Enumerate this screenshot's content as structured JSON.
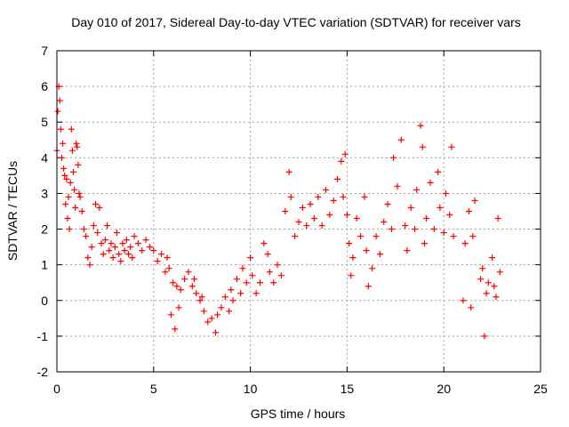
{
  "chart_data": {
    "type": "scatter",
    "title": "Day 010 of 2017, Sidereal Day-to-day VTEC variation (SDTVAR) for receiver vars",
    "xlabel": "GPS time / hours",
    "ylabel": "SDTVAR / TECUs",
    "xlim": [
      0,
      25
    ],
    "ylim": [
      -2,
      7
    ],
    "xticks": [
      "0",
      "5",
      "10",
      "15",
      "20",
      "25"
    ],
    "yticks": [
      "-2",
      "-1",
      "0",
      "1",
      "2",
      "3",
      "4",
      "5",
      "6",
      "7"
    ],
    "grid": true,
    "marker": "plus",
    "series": [
      {
        "name": "SDTVAR",
        "color": "#ff0000",
        "points": [
          [
            0.0,
            4.2
          ],
          [
            0.05,
            5.3
          ],
          [
            0.1,
            6.0
          ],
          [
            0.15,
            5.6
          ],
          [
            0.2,
            4.8
          ],
          [
            0.25,
            4.0
          ],
          [
            0.3,
            4.4
          ],
          [
            0.35,
            3.7
          ],
          [
            0.4,
            3.5
          ],
          [
            0.45,
            2.7
          ],
          [
            0.5,
            3.4
          ],
          [
            0.55,
            2.3
          ],
          [
            0.6,
            2.9
          ],
          [
            0.65,
            2.0
          ],
          [
            0.7,
            3.3
          ],
          [
            0.75,
            4.8
          ],
          [
            0.8,
            4.2
          ],
          [
            0.85,
            3.6
          ],
          [
            0.9,
            3.1
          ],
          [
            0.95,
            2.6
          ],
          [
            1.0,
            4.4
          ],
          [
            1.05,
            4.3
          ],
          [
            1.1,
            3.8
          ],
          [
            1.15,
            3.0
          ],
          [
            1.2,
            2.9
          ],
          [
            1.3,
            2.5
          ],
          [
            1.4,
            2.0
          ],
          [
            1.5,
            1.8
          ],
          [
            1.6,
            1.2
          ],
          [
            1.7,
            1.0
          ],
          [
            1.8,
            1.5
          ],
          [
            1.9,
            2.1
          ],
          [
            2.0,
            2.7
          ],
          [
            2.1,
            1.9
          ],
          [
            2.2,
            2.6
          ],
          [
            2.3,
            1.6
          ],
          [
            2.4,
            1.3
          ],
          [
            2.5,
            1.7
          ],
          [
            2.6,
            2.1
          ],
          [
            2.7,
            1.4
          ],
          [
            2.8,
            1.6
          ],
          [
            2.9,
            1.2
          ],
          [
            3.0,
            1.5
          ],
          [
            3.1,
            1.9
          ],
          [
            3.2,
            1.3
          ],
          [
            3.3,
            1.1
          ],
          [
            3.4,
            1.6
          ],
          [
            3.5,
            1.4
          ],
          [
            3.6,
            1.7
          ],
          [
            3.7,
            1.3
          ],
          [
            3.8,
            1.5
          ],
          [
            3.9,
            1.2
          ],
          [
            4.0,
            1.8
          ],
          [
            4.2,
            1.6
          ],
          [
            4.4,
            1.4
          ],
          [
            4.6,
            1.7
          ],
          [
            4.8,
            1.5
          ],
          [
            5.0,
            1.4
          ],
          [
            5.2,
            1.1
          ],
          [
            5.4,
            1.3
          ],
          [
            5.6,
            0.8
          ],
          [
            5.7,
            1.2
          ],
          [
            5.8,
            0.9
          ],
          [
            5.9,
            -0.4
          ],
          [
            6.0,
            0.5
          ],
          [
            6.1,
            -0.8
          ],
          [
            6.2,
            0.4
          ],
          [
            6.3,
            -0.2
          ],
          [
            6.4,
            0.3
          ],
          [
            6.6,
            0.6
          ],
          [
            6.8,
            0.8
          ],
          [
            7.0,
            0.4
          ],
          [
            7.1,
            0.6
          ],
          [
            7.2,
            0.2
          ],
          [
            7.4,
            0.0
          ],
          [
            7.5,
            0.1
          ],
          [
            7.6,
            -0.3
          ],
          [
            7.8,
            -0.6
          ],
          [
            8.0,
            -0.5
          ],
          [
            8.2,
            -0.9
          ],
          [
            8.3,
            -0.4
          ],
          [
            8.5,
            -0.2
          ],
          [
            8.7,
            0.1
          ],
          [
            8.9,
            -0.3
          ],
          [
            9.0,
            0.3
          ],
          [
            9.1,
            0.0
          ],
          [
            9.3,
            0.6
          ],
          [
            9.5,
            0.2
          ],
          [
            9.6,
            0.9
          ],
          [
            9.8,
            0.5
          ],
          [
            10.0,
            1.2
          ],
          [
            10.1,
            0.7
          ],
          [
            10.3,
            0.2
          ],
          [
            10.5,
            0.5
          ],
          [
            10.7,
            1.6
          ],
          [
            10.9,
            1.3
          ],
          [
            11.0,
            0.8
          ],
          [
            11.2,
            0.5
          ],
          [
            11.4,
            1.0
          ],
          [
            11.6,
            0.7
          ],
          [
            11.8,
            2.5
          ],
          [
            12.0,
            3.6
          ],
          [
            12.1,
            2.9
          ],
          [
            12.3,
            1.8
          ],
          [
            12.5,
            2.2
          ],
          [
            12.7,
            2.6
          ],
          [
            12.9,
            2.1
          ],
          [
            13.1,
            2.7
          ],
          [
            13.3,
            2.3
          ],
          [
            13.5,
            2.9
          ],
          [
            13.7,
            2.1
          ],
          [
            13.9,
            3.1
          ],
          [
            14.1,
            2.4
          ],
          [
            14.3,
            2.8
          ],
          [
            14.5,
            3.4
          ],
          [
            14.7,
            3.9
          ],
          [
            14.8,
            2.9
          ],
          [
            14.9,
            4.1
          ],
          [
            15.0,
            2.4
          ],
          [
            15.1,
            1.6
          ],
          [
            15.2,
            0.7
          ],
          [
            15.3,
            1.2
          ],
          [
            15.5,
            2.3
          ],
          [
            15.7,
            1.8
          ],
          [
            15.9,
            2.9
          ],
          [
            16.0,
            1.4
          ],
          [
            16.1,
            0.4
          ],
          [
            16.3,
            0.9
          ],
          [
            16.5,
            1.8
          ],
          [
            16.7,
            1.3
          ],
          [
            16.9,
            2.2
          ],
          [
            17.1,
            2.7
          ],
          [
            17.3,
            2.0
          ],
          [
            17.4,
            4.0
          ],
          [
            17.6,
            3.2
          ],
          [
            17.8,
            4.5
          ],
          [
            18.0,
            2.1
          ],
          [
            18.1,
            1.4
          ],
          [
            18.3,
            2.6
          ],
          [
            18.5,
            2.0
          ],
          [
            18.6,
            3.1
          ],
          [
            18.8,
            4.9
          ],
          [
            18.9,
            4.3
          ],
          [
            19.0,
            1.6
          ],
          [
            19.1,
            2.3
          ],
          [
            19.3,
            3.3
          ],
          [
            19.5,
            2.0
          ],
          [
            19.7,
            3.6
          ],
          [
            19.8,
            2.6
          ],
          [
            20.0,
            1.9
          ],
          [
            20.1,
            3.0
          ],
          [
            20.3,
            2.4
          ],
          [
            20.4,
            4.3
          ],
          [
            20.5,
            1.8
          ],
          [
            21.0,
            0.0
          ],
          [
            21.1,
            1.6
          ],
          [
            21.3,
            2.5
          ],
          [
            21.4,
            -0.2
          ],
          [
            21.5,
            1.8
          ],
          [
            21.6,
            2.8
          ],
          [
            21.9,
            0.6
          ],
          [
            22.0,
            0.9
          ],
          [
            22.1,
            -1.0
          ],
          [
            22.2,
            0.2
          ],
          [
            22.3,
            0.5
          ],
          [
            22.5,
            1.2
          ],
          [
            22.6,
            0.4
          ],
          [
            22.7,
            0.1
          ],
          [
            22.8,
            2.3
          ],
          [
            22.9,
            0.8
          ]
        ]
      }
    ]
  }
}
